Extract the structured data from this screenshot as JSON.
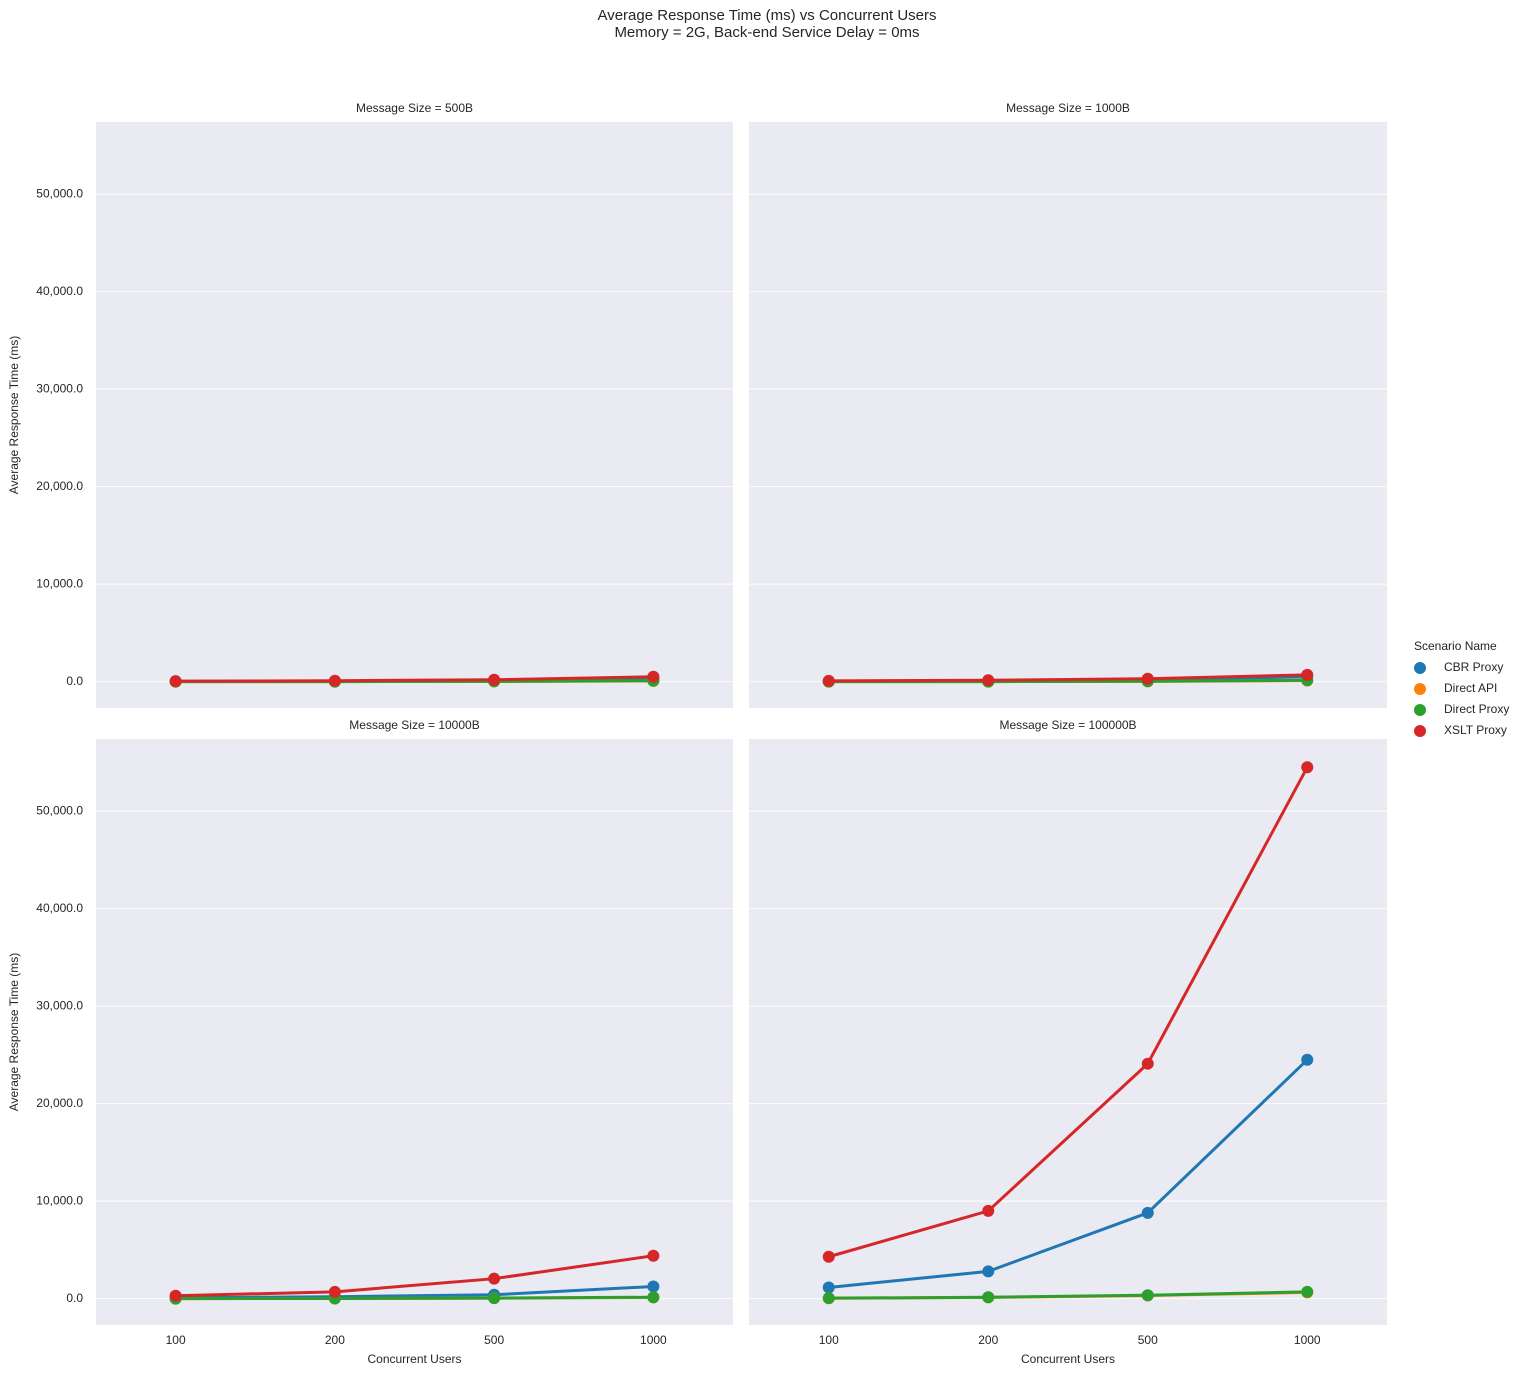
{
  "title": "Average Response Time (ms) vs Concurrent Users",
  "subtitle": "Memory = 2G, Back-end Service Delay = 0ms",
  "xlabel": "Concurrent Users",
  "ylabel": "Average Response Time (ms)",
  "categories": [
    "100",
    "200",
    "500",
    "1000"
  ],
  "ylim": [
    -2700,
    57400
  ],
  "yticks": [
    {
      "value": 0,
      "label": "0.0"
    },
    {
      "value": 10000,
      "label": "10,000.0"
    },
    {
      "value": 20000,
      "label": "20,000.0"
    },
    {
      "value": 30000,
      "label": "30,000.0"
    },
    {
      "value": 40000,
      "label": "40,000.0"
    },
    {
      "value": 50000,
      "label": "50,000.0"
    }
  ],
  "grid": true,
  "legend_title": "Scenario Name",
  "legend_position": "right",
  "chart_data": [
    {
      "type": "line",
      "title": "Message Size = 500B",
      "series": [
        {
          "name": "CBR Proxy",
          "color": "#1f77b4",
          "values": [
            30,
            60,
            150,
            350
          ]
        },
        {
          "name": "Direct API",
          "color": "#ff7f0e",
          "values": [
            3,
            8,
            25,
            80
          ]
        },
        {
          "name": "Direct Proxy",
          "color": "#2ca02c",
          "values": [
            5,
            10,
            30,
            100
          ]
        },
        {
          "name": "XSLT Proxy",
          "color": "#d62728",
          "values": [
            50,
            100,
            200,
            500
          ]
        }
      ]
    },
    {
      "type": "line",
      "title": "Message Size = 1000B",
      "series": [
        {
          "name": "CBR Proxy",
          "color": "#1f77b4",
          "values": [
            40,
            80,
            200,
            500
          ]
        },
        {
          "name": "Direct API",
          "color": "#ff7f0e",
          "values": [
            4,
            9,
            30,
            120
          ]
        },
        {
          "name": "Direct Proxy",
          "color": "#2ca02c",
          "values": [
            5,
            10,
            40,
            150
          ]
        },
        {
          "name": "XSLT Proxy",
          "color": "#d62728",
          "values": [
            80,
            150,
            300,
            700
          ]
        }
      ]
    },
    {
      "type": "line",
      "title": "Message Size = 10000B",
      "series": [
        {
          "name": "CBR Proxy",
          "color": "#1f77b4",
          "values": [
            100,
            200,
            400,
            1250
          ]
        },
        {
          "name": "Direct API",
          "color": "#ff7f0e",
          "values": [
            8,
            15,
            50,
            130
          ]
        },
        {
          "name": "Direct Proxy",
          "color": "#2ca02c",
          "values": [
            10,
            20,
            60,
            150
          ]
        },
        {
          "name": "XSLT Proxy",
          "color": "#d62728",
          "values": [
            300,
            700,
            2050,
            4400
          ]
        }
      ]
    },
    {
      "type": "line",
      "title": "Message Size = 100000B",
      "series": [
        {
          "name": "CBR Proxy",
          "color": "#1f77b4",
          "values": [
            1150,
            2800,
            8800,
            24500
          ]
        },
        {
          "name": "Direct API",
          "color": "#ff7f0e",
          "values": [
            40,
            130,
            320,
            650
          ]
        },
        {
          "name": "Direct Proxy",
          "color": "#2ca02c",
          "values": [
            50,
            150,
            350,
            700
          ]
        },
        {
          "name": "XSLT Proxy",
          "color": "#d62728",
          "values": [
            4300,
            9000,
            24100,
            54500
          ]
        }
      ]
    }
  ]
}
